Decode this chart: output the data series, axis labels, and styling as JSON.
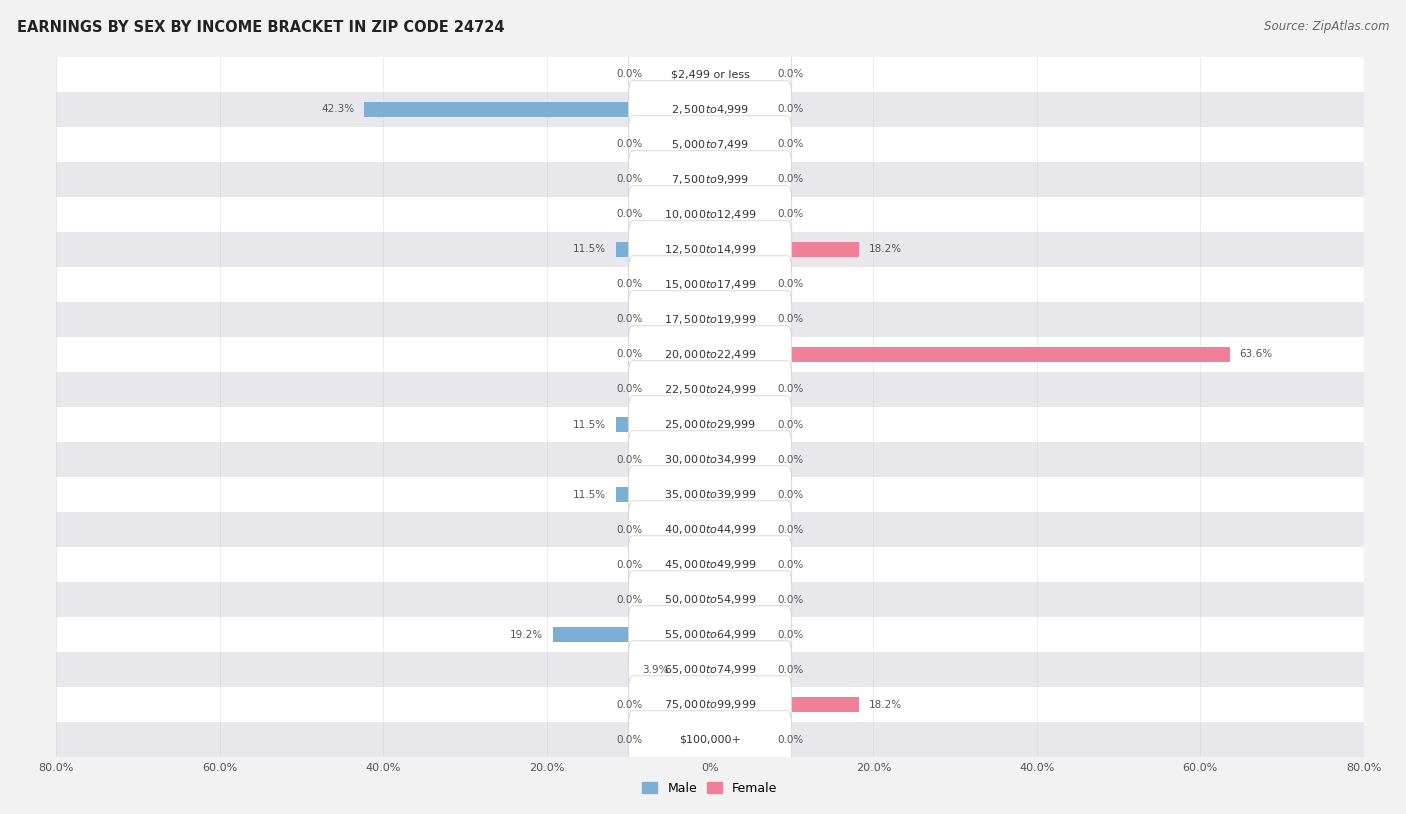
{
  "title": "EARNINGS BY SEX BY INCOME BRACKET IN ZIP CODE 24724",
  "source": "Source: ZipAtlas.com",
  "categories": [
    "$2,499 or less",
    "$2,500 to $4,999",
    "$5,000 to $7,499",
    "$7,500 to $9,999",
    "$10,000 to $12,499",
    "$12,500 to $14,999",
    "$15,000 to $17,499",
    "$17,500 to $19,999",
    "$20,000 to $22,499",
    "$22,500 to $24,999",
    "$25,000 to $29,999",
    "$30,000 to $34,999",
    "$35,000 to $39,999",
    "$40,000 to $44,999",
    "$45,000 to $49,999",
    "$50,000 to $54,999",
    "$55,000 to $64,999",
    "$65,000 to $74,999",
    "$75,000 to $99,999",
    "$100,000+"
  ],
  "male_values": [
    0.0,
    42.3,
    0.0,
    0.0,
    0.0,
    11.5,
    0.0,
    0.0,
    0.0,
    0.0,
    11.5,
    0.0,
    11.5,
    0.0,
    0.0,
    0.0,
    19.2,
    3.9,
    0.0,
    0.0
  ],
  "female_values": [
    0.0,
    0.0,
    0.0,
    0.0,
    0.0,
    18.2,
    0.0,
    0.0,
    63.6,
    0.0,
    0.0,
    0.0,
    0.0,
    0.0,
    0.0,
    0.0,
    0.0,
    0.0,
    18.2,
    0.0
  ],
  "male_color": "#7bafd4",
  "female_color": "#f08098",
  "male_zero_color": "#b8d4e8",
  "female_zero_color": "#f5bfca",
  "background_color": "#f2f2f2",
  "row_color_odd": "#ffffff",
  "row_color_even": "#e8e8ec",
  "label_box_color": "#ffffff",
  "axis_max": 80.0,
  "legend_male": "Male",
  "legend_female": "Female",
  "title_fontsize": 10.5,
  "source_fontsize": 8.5,
  "bar_height": 0.45,
  "zero_bar_width": 7.0
}
